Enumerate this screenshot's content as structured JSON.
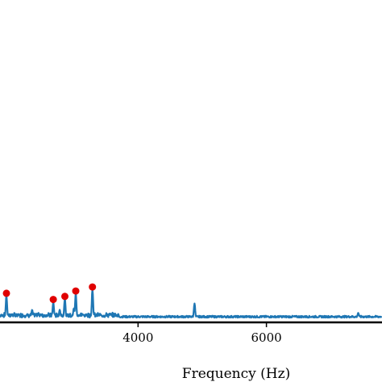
{
  "chart_data": {
    "type": "line",
    "xlabel": "Frequency (Hz)",
    "ylabel": "",
    "title": "",
    "x_ticks": [
      4000,
      6000
    ],
    "x_tick_labels": [
      "4000",
      "6000"
    ],
    "xlim": [
      1850,
      7800
    ],
    "ylim": [
      0,
      1.0
    ],
    "grid": false,
    "series_color": "#1f77b4",
    "marker_color": "#e00000",
    "baseline": 0.015,
    "spectrum_peaks": [
      {
        "x": 1950,
        "y": 0.085
      },
      {
        "x": 2350,
        "y": 0.04
      },
      {
        "x": 2450,
        "y": 0.03
      },
      {
        "x": 2680,
        "y": 0.065
      },
      {
        "x": 2780,
        "y": 0.04
      },
      {
        "x": 2860,
        "y": 0.075
      },
      {
        "x": 3000,
        "y": 0.045
      },
      {
        "x": 3030,
        "y": 0.092
      },
      {
        "x": 3200,
        "y": 0.025
      },
      {
        "x": 3290,
        "y": 0.105
      },
      {
        "x": 3420,
        "y": 0.02
      },
      {
        "x": 3600,
        "y": 0.015
      },
      {
        "x": 4880,
        "y": 0.06
      },
      {
        "x": 7430,
        "y": 0.03
      }
    ],
    "marked_peaks": [
      {
        "x": 1950,
        "y": 0.085
      },
      {
        "x": 2680,
        "y": 0.065
      },
      {
        "x": 2860,
        "y": 0.075
      },
      {
        "x": 3030,
        "y": 0.092
      },
      {
        "x": 3290,
        "y": 0.105
      }
    ]
  }
}
